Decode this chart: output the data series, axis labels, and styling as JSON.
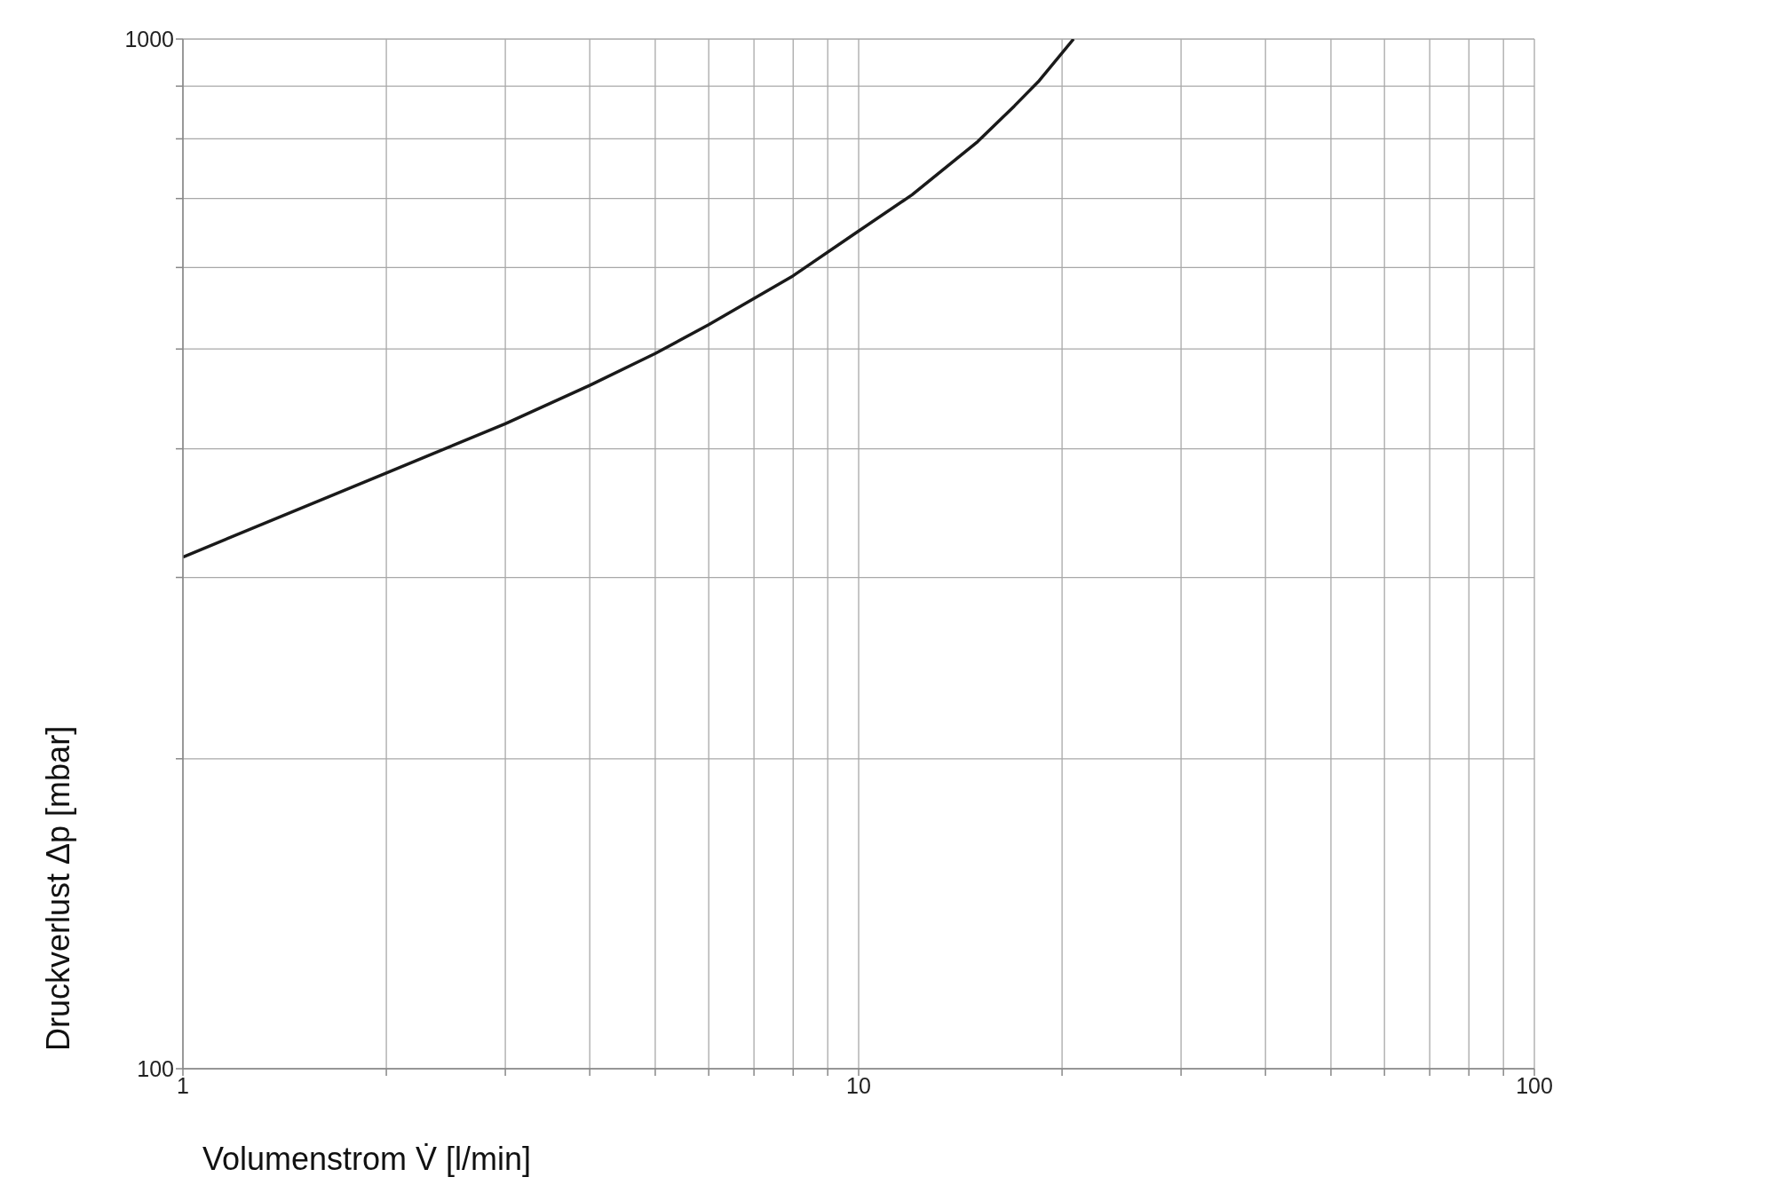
{
  "chart_data": {
    "type": "line",
    "xlabel": "Volumenstrom V̇ [l/min]",
    "ylabel": "Druckverlust Δp [mbar]",
    "log": "xy",
    "grid": true,
    "marker": "none",
    "line_style": "solid",
    "legend": false,
    "x": [
      1,
      2,
      3,
      4,
      5,
      6,
      8,
      10,
      12,
      15,
      17,
      18.5,
      20.8
    ],
    "series": [
      {
        "color": "#1a1a1a",
        "values": [
          314,
          379,
          423,
          461,
          495,
          528,
          589,
          651,
          706,
          795,
          861,
          911,
          1000
        ]
      }
    ],
    "xlim": [
      1,
      100
    ],
    "ylim": [
      100,
      1000
    ],
    "xticks": [
      1,
      {
        "value": 2,
        "label": null
      },
      {
        "value": 3,
        "label": null
      },
      {
        "value": 4,
        "label": null
      },
      {
        "value": 5,
        "label": null
      },
      {
        "value": 6,
        "label": null
      },
      {
        "value": 7,
        "label": null
      },
      {
        "value": 8,
        "label": null
      },
      {
        "value": 9,
        "label": null
      },
      10,
      {
        "value": 20,
        "label": null
      },
      {
        "value": 30,
        "label": null
      },
      {
        "value": 40,
        "label": null
      },
      {
        "value": 50,
        "label": null
      },
      {
        "value": 60,
        "label": null
      },
      {
        "value": 70,
        "label": null
      },
      {
        "value": 80,
        "label": null
      },
      {
        "value": 90,
        "label": null
      },
      100
    ],
    "yticks": [
      100,
      {
        "value": 200,
        "label": null
      },
      {
        "value": 300,
        "label": null
      },
      {
        "value": 400,
        "label": null
      },
      {
        "value": 500,
        "label": null
      },
      {
        "value": 600,
        "label": null
      },
      {
        "value": 700,
        "label": null
      },
      {
        "value": 800,
        "label": null
      },
      {
        "value": 900,
        "label": null
      },
      1000
    ]
  }
}
